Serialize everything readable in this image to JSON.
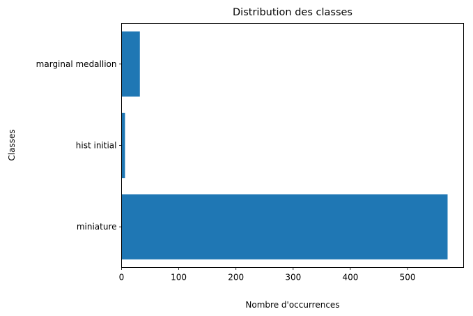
{
  "chart_data": {
    "type": "bar",
    "orientation": "horizontal",
    "title": "Distribution des classes",
    "xlabel": "Nombre d'occurrences",
    "ylabel": "Classes",
    "categories": [
      "miniature",
      "hist initial",
      "marginal medallion"
    ],
    "values": [
      570,
      6,
      32
    ],
    "xlim": [
      0,
      598
    ],
    "xticks": [
      0,
      100,
      200,
      300,
      400,
      500
    ],
    "grid": false,
    "bar_color": "#1f77b4"
  }
}
